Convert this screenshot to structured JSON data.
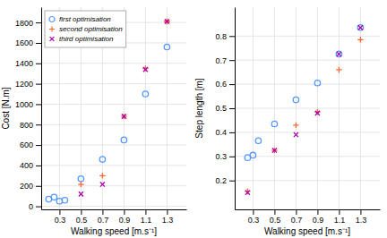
{
  "chart_data": [
    {
      "type": "scatter",
      "xlabel": "Walking speed [m.s⁻¹]",
      "ylabel": "Cost [N.m]",
      "xlim": [
        0.13,
        1.48
      ],
      "ylim": [
        -30,
        1950
      ],
      "xticks": [
        0.3,
        0.5,
        0.7,
        0.9,
        1.1,
        1.3
      ],
      "yticks": [
        0,
        200,
        400,
        600,
        800,
        1000,
        1200,
        1400,
        1600,
        1800
      ],
      "grid": true,
      "legend": "upper left",
      "series": [
        {
          "name": "first optimisation",
          "color": "#5599FF",
          "marker": "circle",
          "x": [
            0.2,
            0.25,
            0.3,
            0.35,
            0.5,
            0.7,
            0.9,
            1.1,
            1.3
          ],
          "values": [
            70,
            90,
            50,
            60,
            270,
            460,
            650,
            1100,
            1560
          ]
        },
        {
          "name": "second optimisation",
          "color": "#FF6633",
          "marker": "plus",
          "x": [
            0.5,
            0.7,
            0.9,
            1.1,
            1.3,
            1.3
          ],
          "values": [
            215,
            300,
            880,
            1350,
            1810,
            1810
          ]
        },
        {
          "name": "third optimisation",
          "color": "#AA00AA",
          "marker": "cross",
          "x": [
            0.5,
            0.7,
            0.9,
            1.1,
            1.3
          ],
          "values": [
            120,
            215,
            880,
            1340,
            1810
          ]
        }
      ]
    },
    {
      "type": "scatter",
      "xlabel": "Walking speed [m.s⁻¹]",
      "ylabel": "Step length [m]",
      "xlim": [
        0.13,
        1.48
      ],
      "ylim": [
        0.08,
        0.92
      ],
      "xticks": [
        0.3,
        0.5,
        0.7,
        0.9,
        1.1,
        1.3
      ],
      "yticks": [
        0.2,
        0.3,
        0.4,
        0.5,
        0.6,
        0.7,
        0.8
      ],
      "grid": true,
      "series": [
        {
          "color": "#5599FF",
          "marker": "circle",
          "x": [
            0.25,
            0.3,
            0.35,
            0.5,
            0.7,
            0.9,
            1.1,
            1.3
          ],
          "values": [
            0.295,
            0.305,
            0.365,
            0.435,
            0.535,
            0.605,
            0.725,
            0.835
          ]
        },
        {
          "color": "#FF6633",
          "marker": "plus",
          "x": [
            0.25,
            0.5,
            0.7,
            0.9,
            1.1,
            1.3
          ],
          "values": [
            0.155,
            0.325,
            0.43,
            0.485,
            0.66,
            0.785
          ]
        },
        {
          "color": "#AA00AA",
          "marker": "cross",
          "x": [
            0.25,
            0.5,
            0.7,
            0.9,
            1.1,
            1.3
          ],
          "values": [
            0.15,
            0.325,
            0.39,
            0.48,
            0.725,
            0.835
          ]
        }
      ]
    }
  ]
}
